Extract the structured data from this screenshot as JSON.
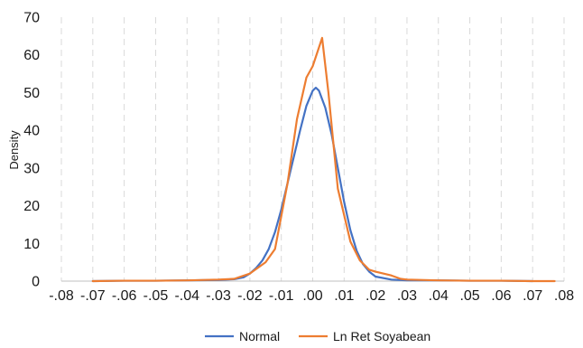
{
  "chart_data": {
    "type": "line",
    "title": "",
    "xlabel": "",
    "ylabel": "Density",
    "xlim": [
      -0.08,
      0.08
    ],
    "ylim": [
      0,
      70
    ],
    "y_ticks": [
      0,
      10,
      20,
      30,
      40,
      50,
      60,
      70
    ],
    "x_ticks": [
      -0.08,
      -0.07,
      -0.06,
      -0.05,
      -0.04,
      -0.03,
      -0.02,
      -0.01,
      0.0,
      0.01,
      0.02,
      0.03,
      0.04,
      0.05,
      0.06,
      0.07,
      0.08
    ],
    "x_tick_labels": [
      "-.08",
      "-.07",
      "-.06",
      "-.05",
      "-.04",
      "-.03",
      "-.02",
      "-.01",
      ".00",
      ".01",
      ".02",
      ".03",
      ".04",
      ".05",
      ".06",
      ".07",
      ".08"
    ],
    "grid": "vertical",
    "legend": "bottom",
    "series": [
      {
        "name": "Normal",
        "color": "#4472C4",
        "points": [
          [
            -0.07,
            0.0
          ],
          [
            -0.06,
            0.1
          ],
          [
            -0.05,
            0.1
          ],
          [
            -0.04,
            0.2
          ],
          [
            -0.03,
            0.3
          ],
          [
            -0.025,
            0.5
          ],
          [
            -0.022,
            1.0
          ],
          [
            -0.02,
            2.0
          ],
          [
            -0.018,
            3.5
          ],
          [
            -0.016,
            5.5
          ],
          [
            -0.014,
            8.5
          ],
          [
            -0.012,
            13.0
          ],
          [
            -0.01,
            19.0
          ],
          [
            -0.008,
            26.0
          ],
          [
            -0.006,
            33.0
          ],
          [
            -0.004,
            40.0
          ],
          [
            -0.002,
            46.5
          ],
          [
            0.0,
            50.5
          ],
          [
            0.001,
            51.3
          ],
          [
            0.002,
            50.5
          ],
          [
            0.004,
            46.0
          ],
          [
            0.006,
            39.0
          ],
          [
            0.008,
            30.0
          ],
          [
            0.01,
            21.0
          ],
          [
            0.012,
            13.5
          ],
          [
            0.014,
            8.0
          ],
          [
            0.016,
            4.5
          ],
          [
            0.018,
            2.5
          ],
          [
            0.02,
            1.2
          ],
          [
            0.025,
            0.4
          ],
          [
            0.03,
            0.2
          ],
          [
            0.04,
            0.2
          ],
          [
            0.05,
            0.1
          ],
          [
            0.06,
            0.1
          ],
          [
            0.07,
            0.0
          ]
        ]
      },
      {
        "name": "Ln Ret Soyabean",
        "color": "#ED7D31",
        "points": [
          [
            -0.07,
            0.0
          ],
          [
            -0.06,
            0.1
          ],
          [
            -0.05,
            0.1
          ],
          [
            -0.04,
            0.2
          ],
          [
            -0.03,
            0.4
          ],
          [
            -0.025,
            0.6
          ],
          [
            -0.02,
            2.0
          ],
          [
            -0.015,
            5.0
          ],
          [
            -0.012,
            8.5
          ],
          [
            -0.008,
            26.0
          ],
          [
            -0.005,
            43.0
          ],
          [
            -0.002,
            54.0
          ],
          [
            0.0,
            57.0
          ],
          [
            0.003,
            64.5
          ],
          [
            0.005,
            50.0
          ],
          [
            0.008,
            24.5
          ],
          [
            0.012,
            10.5
          ],
          [
            0.015,
            5.5
          ],
          [
            0.018,
            3.0
          ],
          [
            0.02,
            2.5
          ],
          [
            0.025,
            1.5
          ],
          [
            0.028,
            0.6
          ],
          [
            0.03,
            0.4
          ],
          [
            0.04,
            0.2
          ],
          [
            0.05,
            0.1
          ],
          [
            0.06,
            0.1
          ],
          [
            0.07,
            0.0
          ],
          [
            0.077,
            0.0
          ]
        ]
      }
    ]
  }
}
